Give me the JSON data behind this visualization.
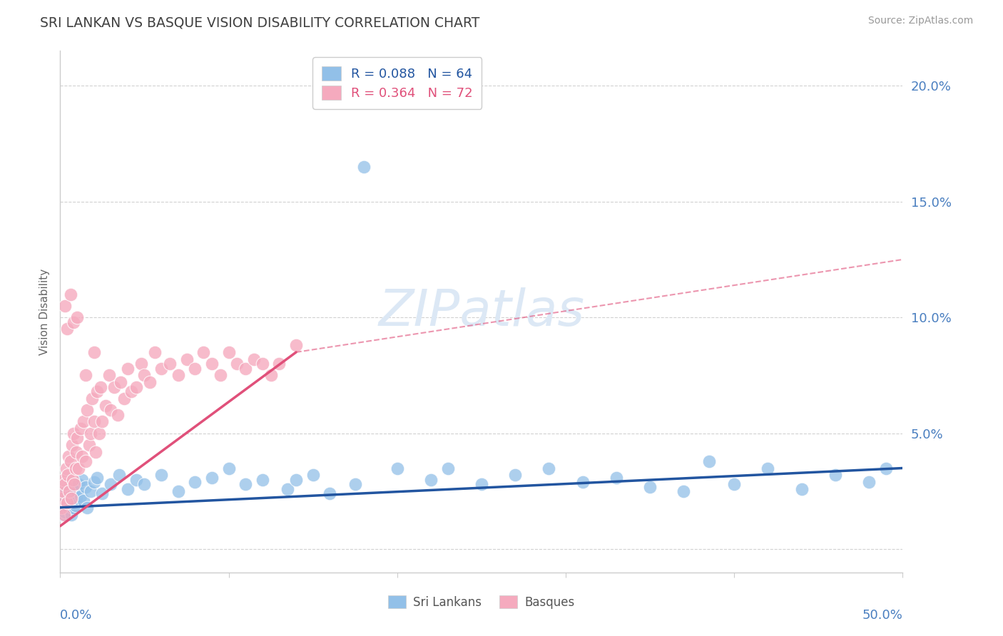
{
  "title": "SRI LANKAN VS BASQUE VISION DISABILITY CORRELATION CHART",
  "source": "Source: ZipAtlas.com",
  "ylabel": "Vision Disability",
  "ytick_labels": [
    "",
    "5.0%",
    "10.0%",
    "15.0%",
    "20.0%"
  ],
  "ytick_values": [
    0.0,
    5.0,
    10.0,
    15.0,
    20.0
  ],
  "xlim": [
    0.0,
    50.0
  ],
  "ylim": [
    -1.0,
    21.5
  ],
  "legend_entry1": "R = 0.088   N = 64",
  "legend_entry2": "R = 0.364   N = 72",
  "group1_color": "#92c0e8",
  "group2_color": "#f5aabe",
  "group1_line_color": "#2255a0",
  "group2_line_color": "#e0507a",
  "background_color": "#ffffff",
  "title_color": "#404040",
  "axis_label_color": "#4a7fc0",
  "grid_color": "#cccccc",
  "watermark_color": "#dce8f5",
  "sri_lankans_x": [
    0.1,
    0.15,
    0.2,
    0.25,
    0.3,
    0.35,
    0.4,
    0.45,
    0.5,
    0.55,
    0.6,
    0.65,
    0.7,
    0.75,
    0.8,
    0.85,
    0.9,
    0.95,
    1.0,
    1.1,
    1.2,
    1.3,
    1.4,
    1.5,
    1.6,
    1.8,
    2.0,
    2.2,
    2.5,
    3.0,
    3.5,
    4.0,
    4.5,
    5.0,
    6.0,
    7.0,
    8.0,
    9.0,
    10.0,
    11.0,
    12.0,
    13.5,
    15.0,
    16.0,
    17.5,
    18.0,
    20.0,
    22.0,
    25.0,
    27.0,
    29.0,
    31.0,
    33.0,
    35.0,
    37.0,
    38.5,
    40.0,
    42.0,
    44.0,
    46.0,
    48.0,
    49.0,
    14.0,
    23.0
  ],
  "sri_lankans_y": [
    1.5,
    2.0,
    1.8,
    2.2,
    1.6,
    2.5,
    1.9,
    2.1,
    2.3,
    1.7,
    2.0,
    1.5,
    2.4,
    1.8,
    2.6,
    2.0,
    1.9,
    2.2,
    2.5,
    2.8,
    2.3,
    3.0,
    2.1,
    2.7,
    1.8,
    2.5,
    2.9,
    3.1,
    2.4,
    2.8,
    3.2,
    2.6,
    3.0,
    2.8,
    3.2,
    2.5,
    2.9,
    3.1,
    3.5,
    2.8,
    3.0,
    2.6,
    3.2,
    2.4,
    2.8,
    16.5,
    3.5,
    3.0,
    2.8,
    3.2,
    3.5,
    2.9,
    3.1,
    2.7,
    2.5,
    3.8,
    2.8,
    3.5,
    2.6,
    3.2,
    2.9,
    3.5,
    3.0,
    3.5
  ],
  "basques_x": [
    0.05,
    0.1,
    0.15,
    0.2,
    0.25,
    0.3,
    0.35,
    0.4,
    0.45,
    0.5,
    0.55,
    0.6,
    0.65,
    0.7,
    0.75,
    0.8,
    0.85,
    0.9,
    0.95,
    1.0,
    1.1,
    1.2,
    1.3,
    1.4,
    1.5,
    1.6,
    1.7,
    1.8,
    1.9,
    2.0,
    2.1,
    2.2,
    2.3,
    2.4,
    2.5,
    2.7,
    2.9,
    3.0,
    3.2,
    3.4,
    3.6,
    3.8,
    4.0,
    4.2,
    4.5,
    4.8,
    5.0,
    5.3,
    5.6,
    6.0,
    6.5,
    7.0,
    7.5,
    8.0,
    8.5,
    9.0,
    9.5,
    10.0,
    10.5,
    11.0,
    11.5,
    12.0,
    12.5,
    13.0,
    0.3,
    0.4,
    0.6,
    0.8,
    1.0,
    1.5,
    2.0,
    14.0
  ],
  "basques_y": [
    1.8,
    2.2,
    2.5,
    3.0,
    1.5,
    2.8,
    3.5,
    2.0,
    3.2,
    4.0,
    2.5,
    3.8,
    2.2,
    4.5,
    3.0,
    5.0,
    2.8,
    3.5,
    4.2,
    4.8,
    3.5,
    5.2,
    4.0,
    5.5,
    3.8,
    6.0,
    4.5,
    5.0,
    6.5,
    5.5,
    4.2,
    6.8,
    5.0,
    7.0,
    5.5,
    6.2,
    7.5,
    6.0,
    7.0,
    5.8,
    7.2,
    6.5,
    7.8,
    6.8,
    7.0,
    8.0,
    7.5,
    7.2,
    8.5,
    7.8,
    8.0,
    7.5,
    8.2,
    7.8,
    8.5,
    8.0,
    7.5,
    8.5,
    8.0,
    7.8,
    8.2,
    8.0,
    7.5,
    8.0,
    10.5,
    9.5,
    11.0,
    9.8,
    10.0,
    7.5,
    8.5,
    8.8
  ],
  "sl_trend_x0": 0.0,
  "sl_trend_y0": 1.8,
  "sl_trend_x1": 50.0,
  "sl_trend_y1": 3.5,
  "bq_trend_x0": 0.0,
  "bq_trend_y0": 1.0,
  "bq_trend_x1": 14.0,
  "bq_trend_y1": 8.5,
  "bq_dash_x0": 14.0,
  "bq_dash_y0": 8.5,
  "bq_dash_x1": 50.0,
  "bq_dash_y1": 12.5
}
